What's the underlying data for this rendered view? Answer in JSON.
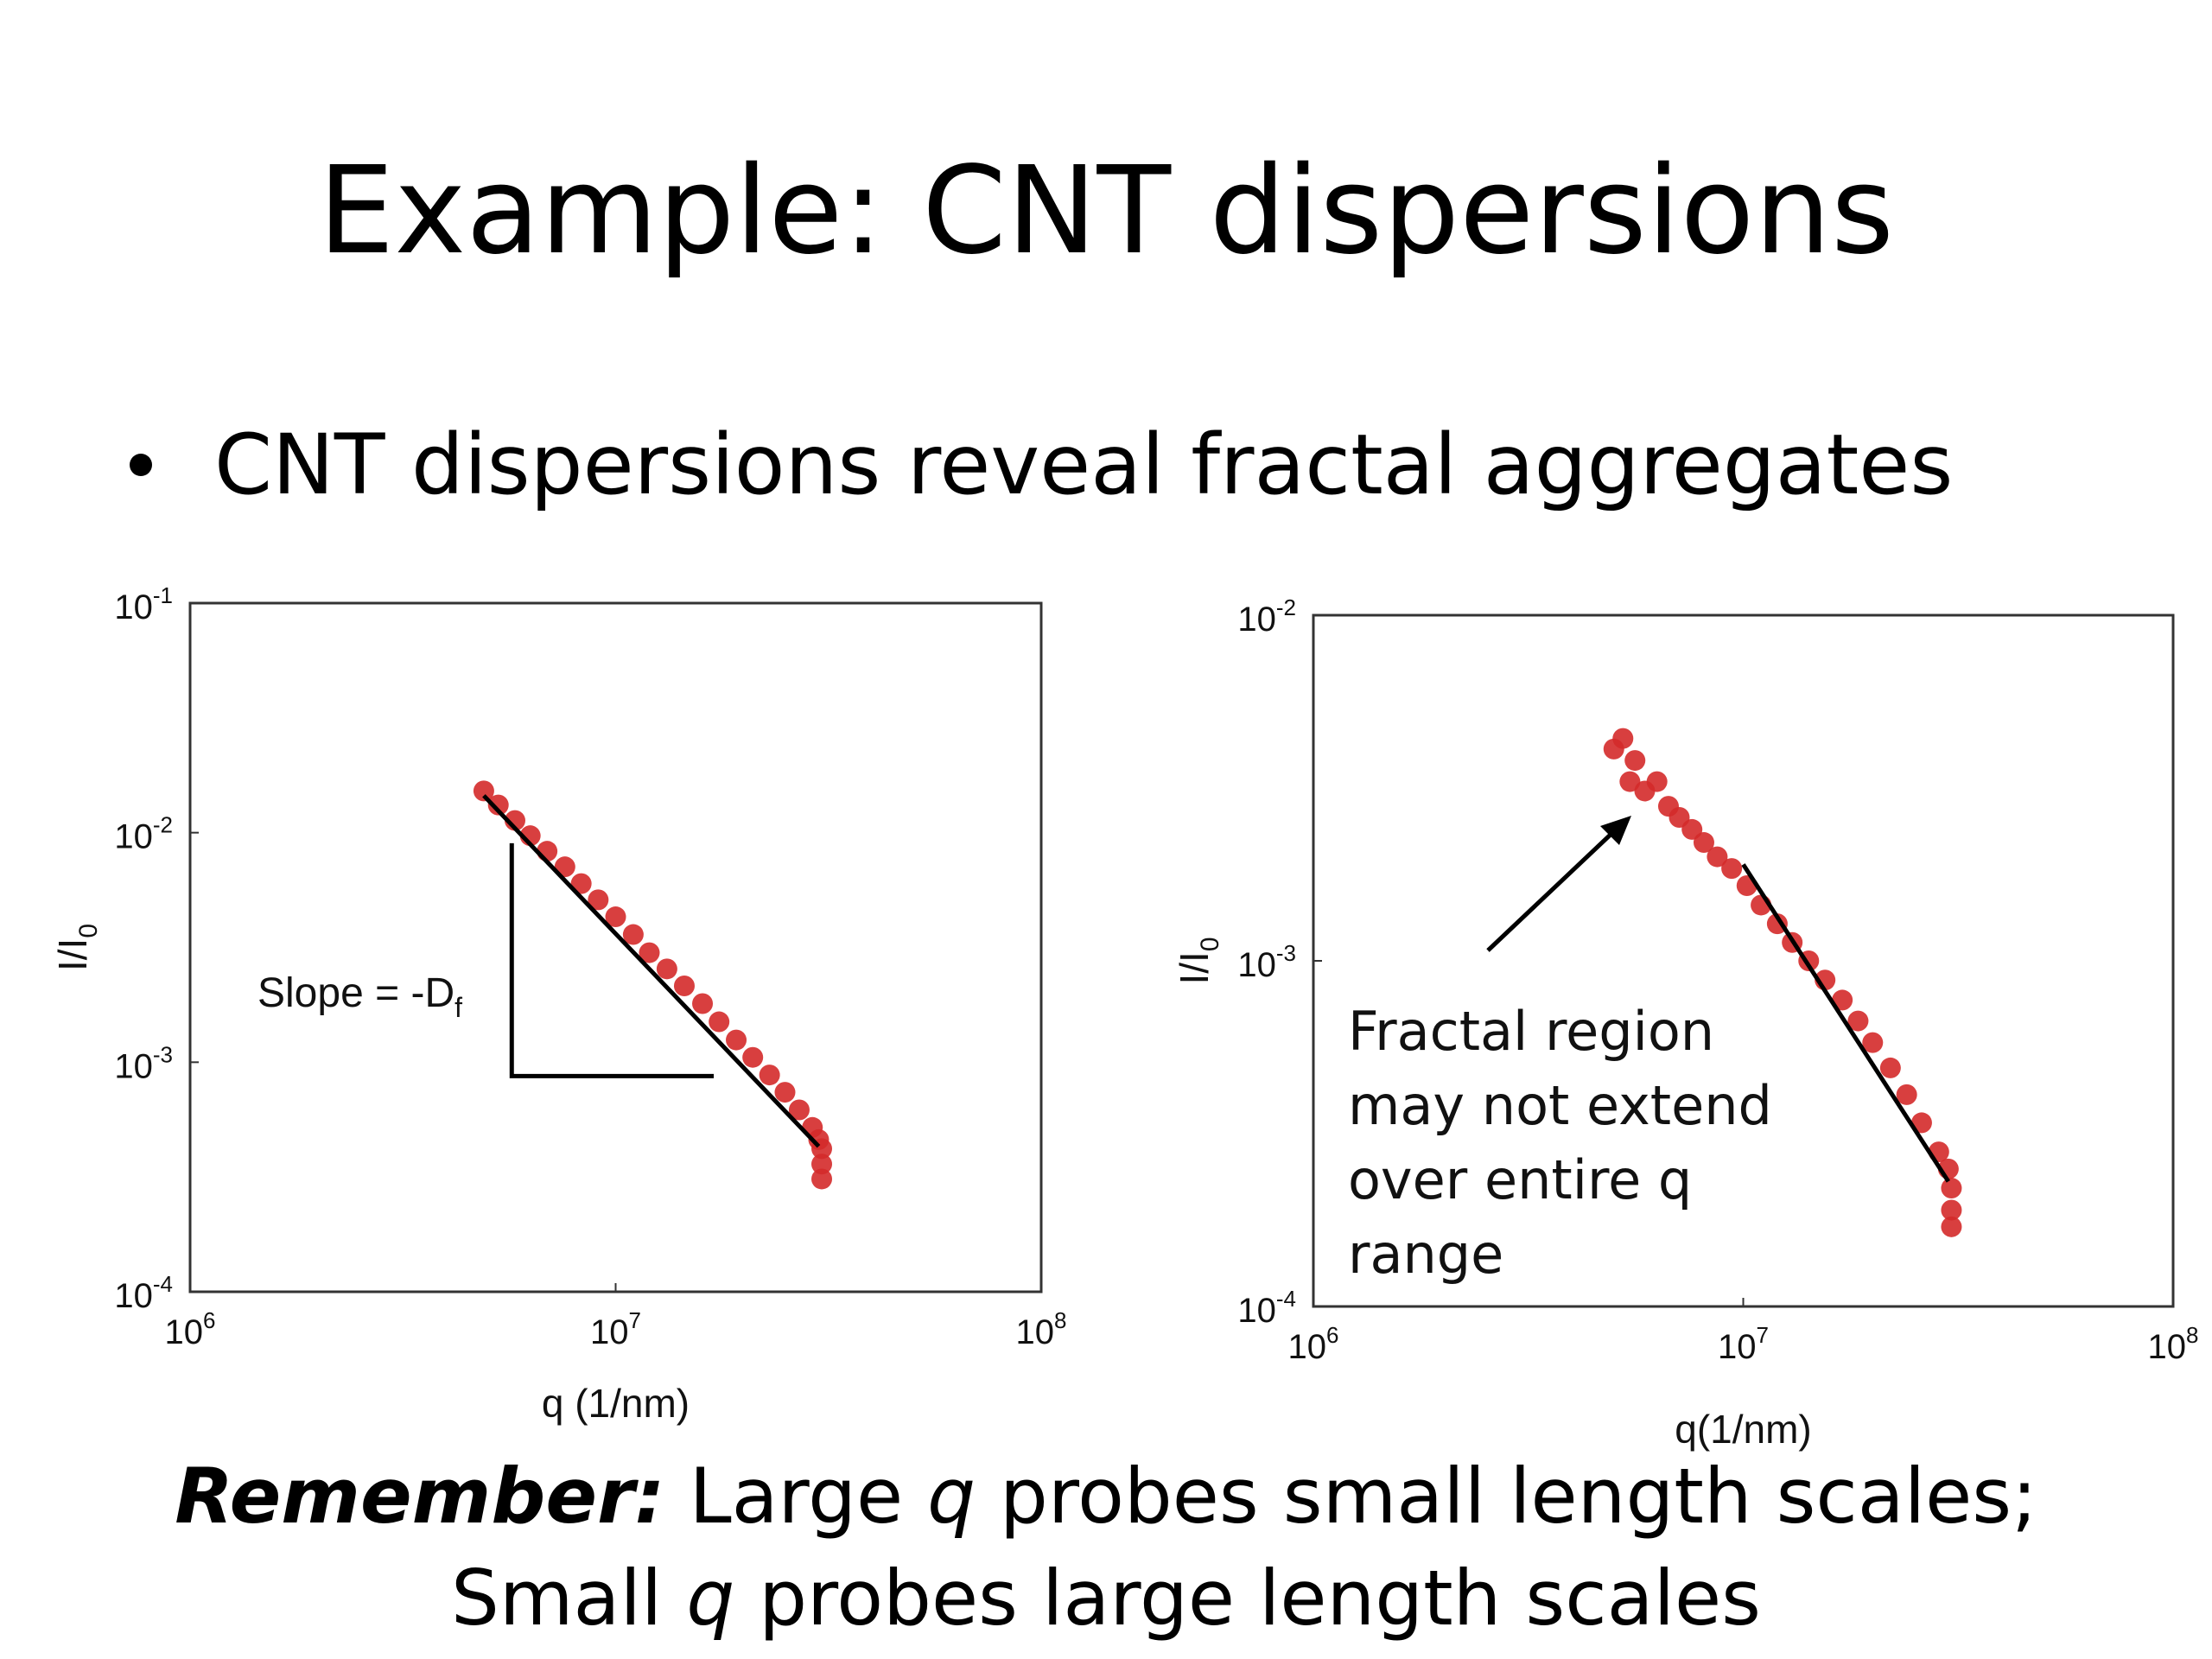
{
  "slide": {
    "title": "Example: CNT dispersions",
    "bullet": "CNT dispersions reveal fractal aggregates",
    "footer": {
      "remember_label": "Remember:",
      "line1_a": " Large ",
      "q": "q",
      "line1_b": " probes small length scales;",
      "line2_a": "Small ",
      "line2_b": " probes large length scales"
    }
  },
  "chart_data": [
    {
      "type": "scatter",
      "title": "",
      "xlabel": "q (1/nm)",
      "ylabel": "I/I",
      "ylabel_sub": "0",
      "xscale": "log",
      "yscale": "log",
      "xlim": [
        1000000.0,
        100000000.0
      ],
      "ylim": [
        0.0001,
        0.1
      ],
      "x_ticks": [
        {
          "base": "10",
          "exp": "6"
        },
        {
          "base": "10",
          "exp": "7"
        },
        {
          "base": "10",
          "exp": "8"
        }
      ],
      "y_ticks": [
        {
          "base": "10",
          "exp": "-1"
        },
        {
          "base": "10",
          "exp": "-2"
        },
        {
          "base": "10",
          "exp": "-3"
        },
        {
          "base": "10",
          "exp": "-4"
        }
      ],
      "marker_color": "#d42a2a",
      "fit_color": "#000000",
      "series": [
        {
          "x": [
            4900000.0,
            5300000.0,
            5800000.0,
            6300000.0,
            6900000.0,
            7600000.0,
            8300000.0,
            9100000.0,
            10000000.0,
            11000000.0,
            12000000.0,
            13200000.0,
            14500000.0,
            16000000.0,
            17500000.0,
            19200000.0,
            21000000.0,
            23000000.0,
            25000000.0,
            27000000.0,
            29000000.0,
            30000000.0,
            30500000.0,
            30500000.0,
            30500000.0
          ],
          "y": [
            0.0152,
            0.0132,
            0.0113,
            0.0097,
            0.0083,
            0.0071,
            0.006,
            0.0051,
            0.0043,
            0.0036,
            0.003,
            0.00255,
            0.00215,
            0.0018,
            0.0015,
            0.00125,
            0.00105,
            0.00088,
            0.00074,
            0.00062,
            0.00052,
            0.00046,
            0.00042,
            0.00036,
            0.00031
          ]
        }
      ],
      "fit_line": {
        "x": [
          4900000.0,
          30000000.0
        ],
        "y": [
          0.0145,
          0.00043
        ]
      },
      "annotations": [
        {
          "text": "Slope = -D",
          "sub": "f"
        }
      ],
      "slope_triangle": {
        "x": [
          5700000.0,
          5700000.0,
          17000000.0
        ],
        "y": [
          0.009,
          0.00087,
          0.00087
        ]
      }
    },
    {
      "type": "scatter",
      "title": "",
      "xlabel": "q(1/nm)",
      "ylabel": "I/I",
      "ylabel_sub": "0",
      "xscale": "log",
      "yscale": "log",
      "xlim": [
        1000000.0,
        100000000.0
      ],
      "ylim": [
        0.0001,
        0.01
      ],
      "x_ticks": [
        {
          "base": "10",
          "exp": "6"
        },
        {
          "base": "10",
          "exp": "7"
        },
        {
          "base": "10",
          "exp": "8"
        }
      ],
      "y_ticks": [
        {
          "base": "10",
          "exp": "-2"
        },
        {
          "base": "10",
          "exp": "-3"
        },
        {
          "base": "10",
          "exp": "-4"
        }
      ],
      "marker_color": "#d42a2a",
      "fit_color": "#000000",
      "series": [
        {
          "x": [
            5000000.0,
            5250000.0,
            5450000.0,
            5600000.0,
            5900000.0,
            6300000.0,
            6700000.0,
            7100000.0,
            7600000.0,
            8100000.0,
            8700000.0,
            9400000.0,
            10200000.0,
            11000000.0,
            12000000.0,
            13000000.0,
            14200000.0,
            15500000.0,
            17000000.0,
            18500000.0,
            20000000.0,
            22000000.0,
            24000000.0,
            26000000.0,
            28500000.0,
            30000000.0,
            30500000.0,
            30500000.0,
            30500000.0
          ],
          "y": [
            0.0041,
            0.0044,
            0.0033,
            0.0038,
            0.0031,
            0.0033,
            0.0028,
            0.0026,
            0.0024,
            0.0022,
            0.002,
            0.00185,
            0.00165,
            0.00145,
            0.00128,
            0.00113,
            0.001,
            0.00088,
            0.00077,
            0.00067,
            0.00058,
            0.00049,
            0.00041,
            0.00034,
            0.00028,
            0.00025,
            0.00022,
            0.00019,
            0.00017
          ]
        }
      ],
      "fit_line": {
        "x": [
          10000000.0,
          30000000.0
        ],
        "y": [
          0.0019,
          0.00023
        ]
      },
      "annotations": [
        {
          "text": "Fractal region"
        },
        {
          "text": "may not extend"
        },
        {
          "text": "over entire q"
        },
        {
          "text": "range"
        }
      ]
    }
  ]
}
